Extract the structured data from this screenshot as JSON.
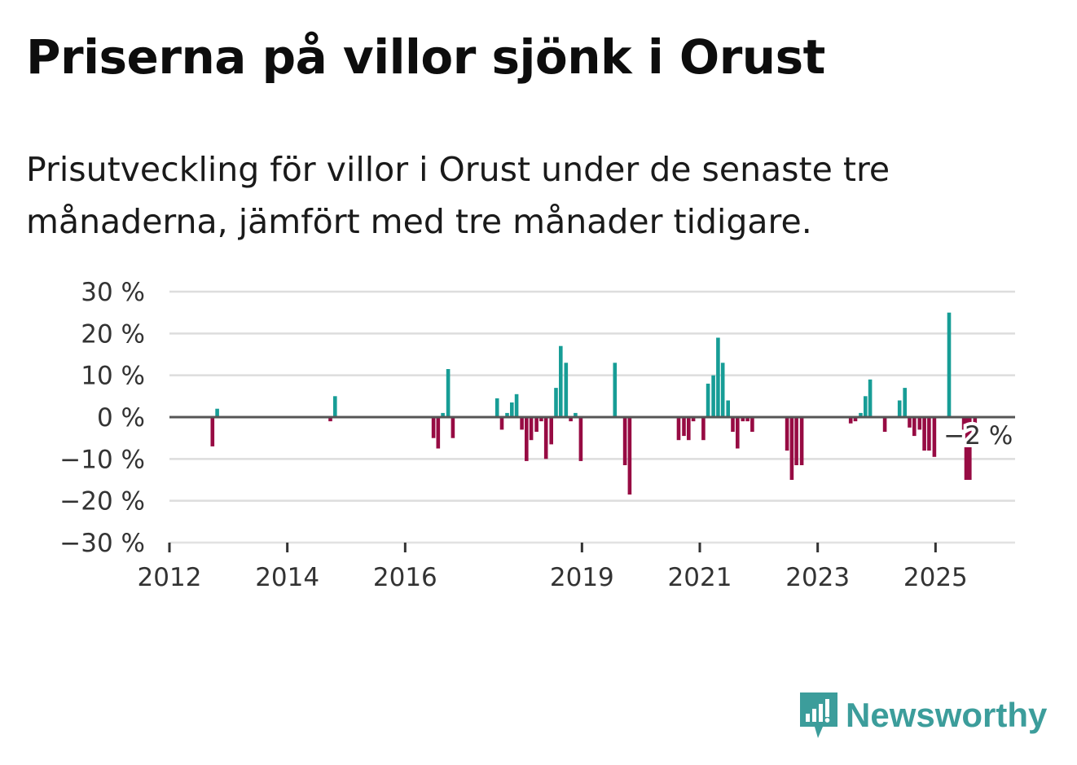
{
  "title": "Priserna på villor sjönk i Orust",
  "subtitle": "Prisutveckling för villor i Orust under de senaste tre månaderna, jämfört med tre månader tidigare.",
  "brand": {
    "name": "Newsworthy",
    "icon": "newsworthy-logo-icon"
  },
  "colors": {
    "positive": "#179d96",
    "negative": "#970b43",
    "grid": "#dddddd",
    "zero": "#555555"
  },
  "chart_data": {
    "type": "bar",
    "y_unit": "%",
    "ylim": [
      -30,
      30
    ],
    "yticks": [
      30,
      20,
      10,
      0,
      -10,
      -20,
      -30
    ],
    "ytick_labels": [
      "30 %",
      "20 %",
      "10 %",
      "0 %",
      "−10 %",
      "−20 %",
      "−30 %"
    ],
    "xlim": [
      2012.0,
      2026.35
    ],
    "xticks": [
      2012,
      2014,
      2016,
      2019,
      2021,
      2023,
      2025
    ],
    "xtick_labels": [
      "2012",
      "2014",
      "2016",
      "2019",
      "2021",
      "2023",
      "2025"
    ],
    "annotation": {
      "text": "−2 %",
      "x": 2025.67,
      "y": -2
    },
    "bars": [
      {
        "x": 2012.73,
        "y": -7
      },
      {
        "x": 2012.81,
        "y": 2
      },
      {
        "x": 2014.73,
        "y": -1
      },
      {
        "x": 2014.81,
        "y": 5
      },
      {
        "x": 2016.48,
        "y": -5
      },
      {
        "x": 2016.56,
        "y": -7.5
      },
      {
        "x": 2016.64,
        "y": 1
      },
      {
        "x": 2016.73,
        "y": 11.5
      },
      {
        "x": 2016.81,
        "y": -5
      },
      {
        "x": 2017.56,
        "y": 4.5
      },
      {
        "x": 2017.64,
        "y": -3
      },
      {
        "x": 2017.73,
        "y": 1
      },
      {
        "x": 2017.81,
        "y": 3.5
      },
      {
        "x": 2017.89,
        "y": 5.5
      },
      {
        "x": 2017.98,
        "y": -3
      },
      {
        "x": 2018.06,
        "y": -10.5
      },
      {
        "x": 2018.14,
        "y": -5.5
      },
      {
        "x": 2018.23,
        "y": -3.5
      },
      {
        "x": 2018.31,
        "y": -1
      },
      {
        "x": 2018.39,
        "y": -10
      },
      {
        "x": 2018.48,
        "y": -6.5
      },
      {
        "x": 2018.56,
        "y": 7
      },
      {
        "x": 2018.64,
        "y": 17
      },
      {
        "x": 2018.73,
        "y": 13
      },
      {
        "x": 2018.81,
        "y": -1
      },
      {
        "x": 2018.89,
        "y": 1
      },
      {
        "x": 2018.98,
        "y": -10.5
      },
      {
        "x": 2019.56,
        "y": 13
      },
      {
        "x": 2019.73,
        "y": -11.5
      },
      {
        "x": 2019.81,
        "y": -18.5
      },
      {
        "x": 2020.64,
        "y": -5.5
      },
      {
        "x": 2020.73,
        "y": -4.5
      },
      {
        "x": 2020.81,
        "y": -5.5
      },
      {
        "x": 2020.89,
        "y": -1
      },
      {
        "x": 2021.06,
        "y": -5.5
      },
      {
        "x": 2021.14,
        "y": 8
      },
      {
        "x": 2021.23,
        "y": 10
      },
      {
        "x": 2021.31,
        "y": 19
      },
      {
        "x": 2021.39,
        "y": 13
      },
      {
        "x": 2021.48,
        "y": 4
      },
      {
        "x": 2021.56,
        "y": -3.5
      },
      {
        "x": 2021.64,
        "y": -7.5
      },
      {
        "x": 2021.73,
        "y": -1
      },
      {
        "x": 2021.81,
        "y": -1
      },
      {
        "x": 2021.89,
        "y": -3.5
      },
      {
        "x": 2022.48,
        "y": -8
      },
      {
        "x": 2022.56,
        "y": -15
      },
      {
        "x": 2022.64,
        "y": -11.5
      },
      {
        "x": 2022.73,
        "y": -11.5
      },
      {
        "x": 2023.56,
        "y": -1.5
      },
      {
        "x": 2023.64,
        "y": -1
      },
      {
        "x": 2023.73,
        "y": 1
      },
      {
        "x": 2023.81,
        "y": 5
      },
      {
        "x": 2023.89,
        "y": 9
      },
      {
        "x": 2024.14,
        "y": -3.5
      },
      {
        "x": 2024.39,
        "y": 4
      },
      {
        "x": 2024.48,
        "y": 7
      },
      {
        "x": 2024.56,
        "y": -2.5
      },
      {
        "x": 2024.64,
        "y": -4.5
      },
      {
        "x": 2024.73,
        "y": -3
      },
      {
        "x": 2024.81,
        "y": -8
      },
      {
        "x": 2024.89,
        "y": -8
      },
      {
        "x": 2024.98,
        "y": -9.5
      },
      {
        "x": 2025.23,
        "y": 25
      },
      {
        "x": 2025.48,
        "y": -3
      },
      {
        "x": 2025.52,
        "y": -15
      },
      {
        "x": 2025.58,
        "y": -15
      },
      {
        "x": 2025.67,
        "y": -2
      }
    ]
  }
}
